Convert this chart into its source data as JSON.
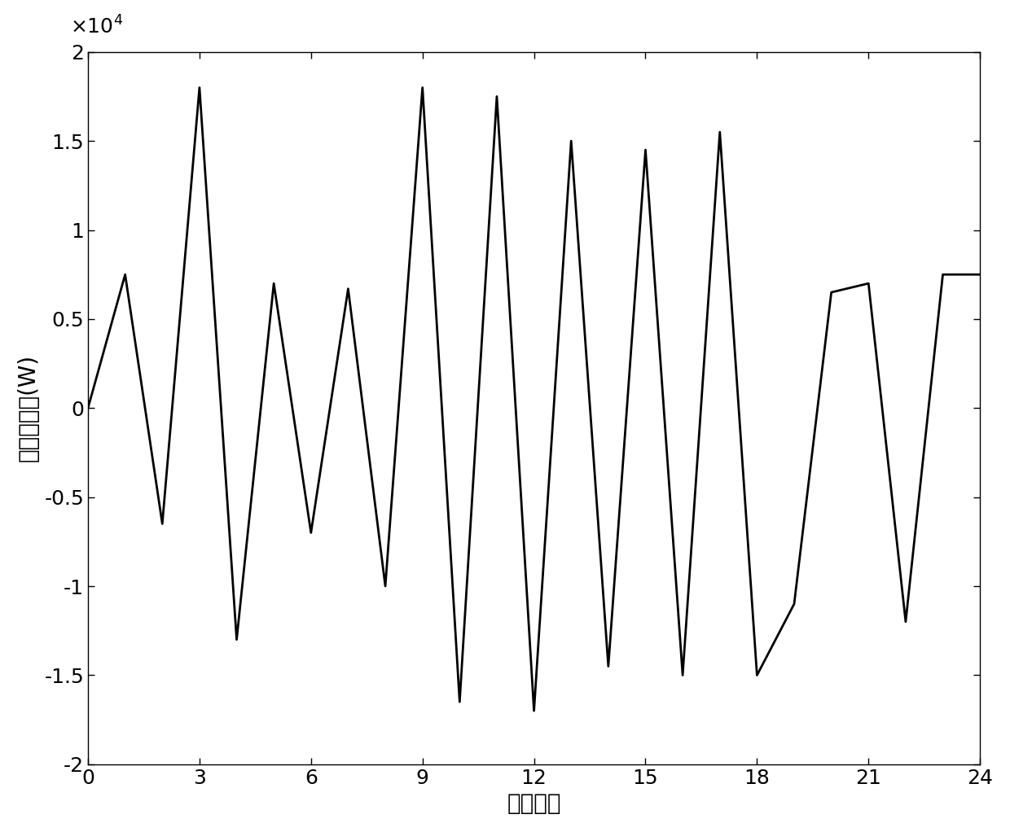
{
  "x": [
    0,
    1,
    2,
    3,
    4,
    5,
    6,
    7,
    8,
    9,
    10,
    11,
    12,
    13,
    14,
    15,
    16,
    17,
    18,
    19,
    20,
    21,
    22,
    23,
    24
  ],
  "y": [
    0,
    7500,
    -6500,
    18000,
    -13000,
    7000,
    -7000,
    6700,
    -10000,
    18000,
    -16500,
    17500,
    -17000,
    15000,
    -14500,
    14500,
    -15000,
    15500,
    -15000,
    -11000,
    6500,
    7000,
    -12000,
    7500,
    7500
  ],
  "xlabel": "通道编号",
  "ylabel": "累积热负荷(W)",
  "xlim": [
    0,
    24
  ],
  "ylim": [
    -20000,
    20000
  ],
  "xticks": [
    0,
    3,
    6,
    9,
    12,
    15,
    18,
    21,
    24
  ],
  "yticks": [
    -20000,
    -15000,
    -10000,
    -5000,
    0,
    5000,
    10000,
    15000,
    20000
  ],
  "line_color": "#000000",
  "line_width": 2.0,
  "bg_color": "#ffffff",
  "xlabel_fontsize": 20,
  "ylabel_fontsize": 20,
  "tick_fontsize": 18
}
